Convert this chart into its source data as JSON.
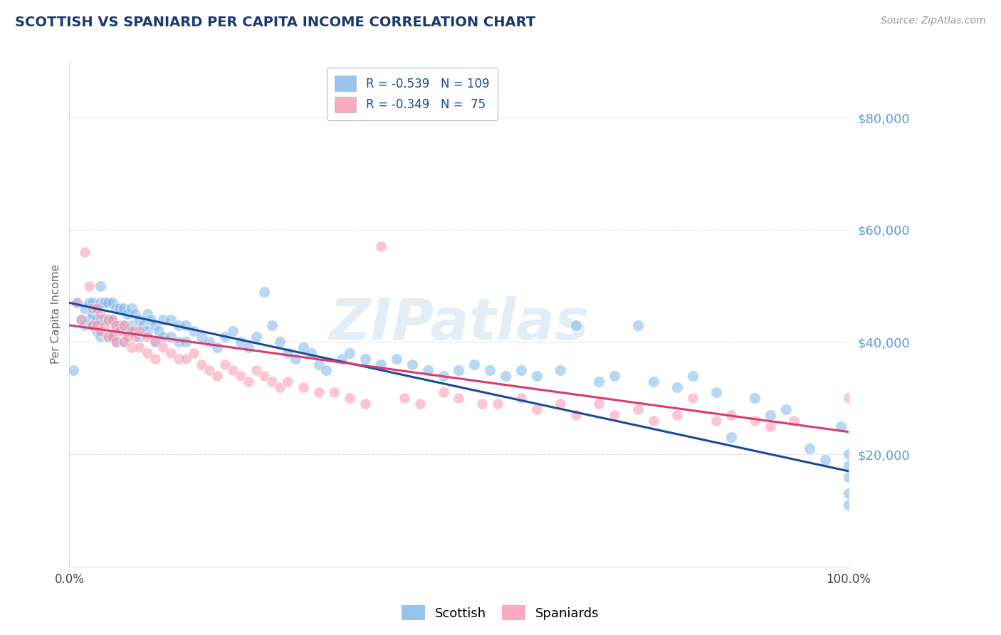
{
  "title": "SCOTTISH VS SPANIARD PER CAPITA INCOME CORRELATION CHART",
  "source": "Source: ZipAtlas.com",
  "ylabel": "Per Capita Income",
  "yticks": [
    0,
    20000,
    40000,
    60000,
    80000
  ],
  "ylim": [
    0,
    90000
  ],
  "xlim": [
    0.0,
    1.0
  ],
  "watermark": "ZIPatlas",
  "blue_color": "#7EB6E8",
  "pink_color": "#F896B0",
  "blue_line_color": "#1A4A9C",
  "pink_line_color": "#D93B6A",
  "title_color": "#1A3A6E",
  "ytick_color": "#5B9BD5",
  "background_color": "#FFFFFF",
  "grid_color": "#DDDDDD",
  "scottish_x": [
    0.005,
    0.01,
    0.015,
    0.02,
    0.02,
    0.025,
    0.025,
    0.03,
    0.03,
    0.03,
    0.035,
    0.035,
    0.035,
    0.04,
    0.04,
    0.04,
    0.04,
    0.045,
    0.045,
    0.05,
    0.05,
    0.05,
    0.055,
    0.055,
    0.055,
    0.06,
    0.06,
    0.06,
    0.065,
    0.065,
    0.07,
    0.07,
    0.07,
    0.075,
    0.075,
    0.08,
    0.08,
    0.085,
    0.085,
    0.09,
    0.09,
    0.095,
    0.1,
    0.1,
    0.105,
    0.11,
    0.11,
    0.115,
    0.12,
    0.12,
    0.13,
    0.13,
    0.14,
    0.14,
    0.15,
    0.15,
    0.16,
    0.17,
    0.18,
    0.19,
    0.2,
    0.21,
    0.22,
    0.23,
    0.24,
    0.25,
    0.26,
    0.27,
    0.28,
    0.29,
    0.3,
    0.31,
    0.32,
    0.33,
    0.35,
    0.36,
    0.38,
    0.4,
    0.42,
    0.44,
    0.46,
    0.48,
    0.5,
    0.52,
    0.54,
    0.56,
    0.58,
    0.6,
    0.63,
    0.65,
    0.68,
    0.7,
    0.73,
    0.75,
    0.78,
    0.8,
    0.83,
    0.85,
    0.88,
    0.9,
    0.92,
    0.95,
    0.97,
    0.99,
    1.0,
    1.0,
    1.0,
    1.0,
    1.0
  ],
  "scottish_y": [
    35000,
    47000,
    44000,
    46000,
    43000,
    47000,
    44000,
    47000,
    45000,
    43000,
    46000,
    44000,
    42000,
    50000,
    47000,
    44000,
    41000,
    47000,
    44000,
    47000,
    44000,
    41000,
    47000,
    44000,
    41000,
    46000,
    43000,
    40000,
    46000,
    43000,
    46000,
    43000,
    40000,
    45000,
    42000,
    46000,
    43000,
    45000,
    42000,
    44000,
    41000,
    43000,
    45000,
    42000,
    44000,
    43000,
    40000,
    42000,
    44000,
    41000,
    44000,
    41000,
    43000,
    40000,
    43000,
    40000,
    42000,
    41000,
    40000,
    39000,
    41000,
    42000,
    40000,
    39000,
    41000,
    49000,
    43000,
    40000,
    38000,
    37000,
    39000,
    38000,
    36000,
    35000,
    37000,
    38000,
    37000,
    36000,
    37000,
    36000,
    35000,
    34000,
    35000,
    36000,
    35000,
    34000,
    35000,
    34000,
    35000,
    43000,
    33000,
    34000,
    43000,
    33000,
    32000,
    34000,
    31000,
    23000,
    30000,
    27000,
    28000,
    21000,
    19000,
    25000,
    20000,
    18000,
    16000,
    13000,
    11000
  ],
  "spaniard_x": [
    0.01,
    0.015,
    0.02,
    0.025,
    0.03,
    0.03,
    0.035,
    0.035,
    0.04,
    0.04,
    0.045,
    0.05,
    0.05,
    0.055,
    0.055,
    0.06,
    0.06,
    0.065,
    0.07,
    0.07,
    0.075,
    0.08,
    0.08,
    0.085,
    0.09,
    0.09,
    0.1,
    0.1,
    0.11,
    0.11,
    0.12,
    0.13,
    0.14,
    0.15,
    0.16,
    0.17,
    0.18,
    0.19,
    0.2,
    0.21,
    0.22,
    0.23,
    0.24,
    0.25,
    0.26,
    0.27,
    0.28,
    0.3,
    0.32,
    0.34,
    0.36,
    0.38,
    0.4,
    0.43,
    0.45,
    0.48,
    0.5,
    0.53,
    0.55,
    0.58,
    0.6,
    0.63,
    0.65,
    0.68,
    0.7,
    0.73,
    0.75,
    0.78,
    0.8,
    0.83,
    0.85,
    0.88,
    0.9,
    0.93,
    1.0
  ],
  "spaniard_y": [
    47000,
    44000,
    56000,
    50000,
    46000,
    43000,
    46000,
    43000,
    45000,
    42000,
    43000,
    44000,
    41000,
    44000,
    41000,
    43000,
    40000,
    42000,
    43000,
    40000,
    41000,
    42000,
    39000,
    41000,
    42000,
    39000,
    41000,
    38000,
    40000,
    37000,
    39000,
    38000,
    37000,
    37000,
    38000,
    36000,
    35000,
    34000,
    36000,
    35000,
    34000,
    33000,
    35000,
    34000,
    33000,
    32000,
    33000,
    32000,
    31000,
    31000,
    30000,
    29000,
    57000,
    30000,
    29000,
    31000,
    30000,
    29000,
    29000,
    30000,
    28000,
    29000,
    27000,
    29000,
    27000,
    28000,
    26000,
    27000,
    30000,
    26000,
    27000,
    26000,
    25000,
    26000,
    30000
  ],
  "blue_scatter_size": 130,
  "pink_scatter_size": 120,
  "scatter_alpha": 0.55,
  "legend_labels": [
    "R = -0.539   N = 109",
    "R = -0.349   N =  75"
  ],
  "bottom_legend_labels": [
    "Scottish",
    "Spaniards"
  ]
}
